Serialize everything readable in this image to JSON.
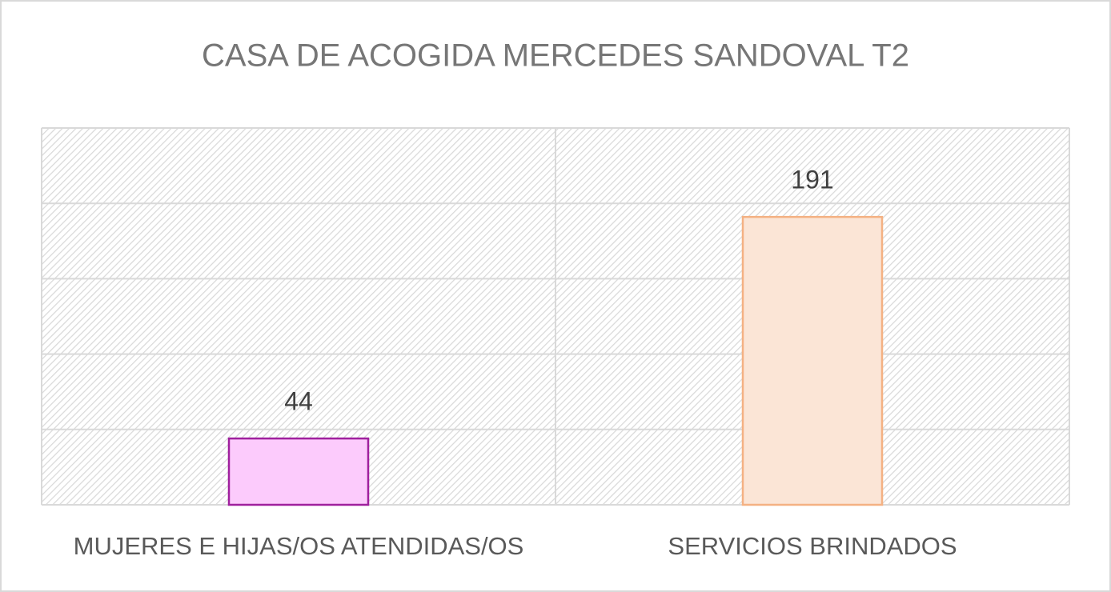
{
  "chart_data": {
    "type": "bar",
    "title": "CASA DE ACOGIDA MERCEDES SANDOVAL T2",
    "categories": [
      "MUJERES E HIJAS/OS ATENDIDAS/OS",
      "SERVICIOS BRINDADOS"
    ],
    "values": [
      44,
      191
    ],
    "colors": [
      "#fccbfc",
      "#fbe5d6"
    ],
    "edge_colors": [
      "#a0209e",
      "#f4b183"
    ],
    "ylim": [
      0,
      250
    ],
    "yticks": [
      0,
      50,
      100,
      150,
      200,
      250
    ],
    "grid": true
  }
}
